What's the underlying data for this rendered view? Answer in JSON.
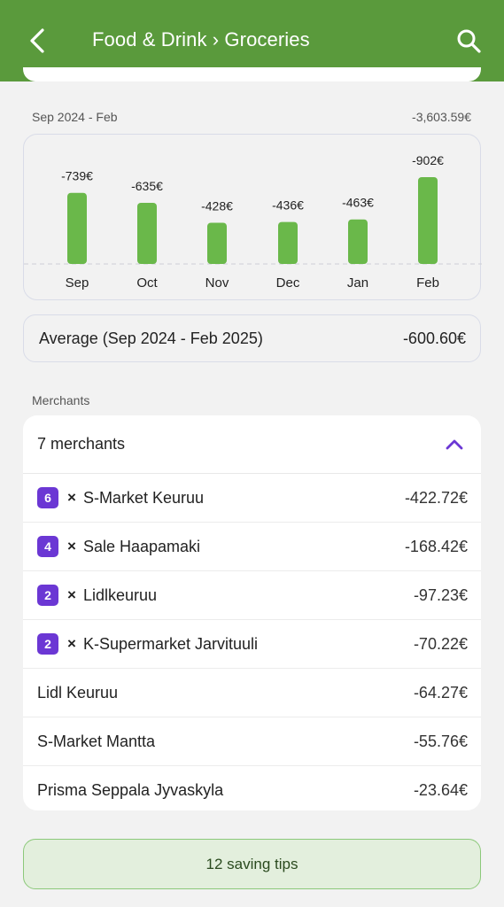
{
  "header": {
    "title": "Food & Drink › Groceries",
    "back_icon": "chevron-left-icon",
    "search_icon": "search-icon",
    "color": "#5a9a3c"
  },
  "period": {
    "range_label": "Sep 2024 - Feb",
    "total": "-3,603.59€"
  },
  "chart_data": {
    "type": "bar",
    "categories": [
      "Sep",
      "Oct",
      "Nov",
      "Dec",
      "Jan",
      "Feb"
    ],
    "values": [
      -739,
      -635,
      -428,
      -436,
      -463,
      -902
    ],
    "labels": [
      "-739€",
      "-635€",
      "-428€",
      "-436€",
      "-463€",
      "-902€"
    ],
    "bar_color": "#6ab84a"
  },
  "average": {
    "label": "Average (Sep 2024 - Feb 2025)",
    "value": "-600.60€"
  },
  "merchants": {
    "section_label": "Merchants",
    "count_label": "7 merchants",
    "collapse_icon": "chevron-up-icon",
    "accent": "#6b37d4",
    "items": [
      {
        "count": "6",
        "times": "×",
        "name": "S-Market Keuruu",
        "amount": "-422.72€"
      },
      {
        "count": "4",
        "times": "×",
        "name": "Sale Haapamaki",
        "amount": "-168.42€"
      },
      {
        "count": "2",
        "times": "×",
        "name": "Lidlkeuruu",
        "amount": "-97.23€"
      },
      {
        "count": "2",
        "times": "×",
        "name": "K-Supermarket Jarvituuli",
        "amount": "-70.22€"
      },
      {
        "name": "Lidl Keuruu",
        "amount": "-64.27€"
      },
      {
        "name": "S-Market Mantta",
        "amount": "-55.76€"
      },
      {
        "name": "Prisma Seppala Jyvaskyla",
        "amount": "-23.64€"
      }
    ]
  },
  "tips": {
    "label": "12 saving tips"
  }
}
